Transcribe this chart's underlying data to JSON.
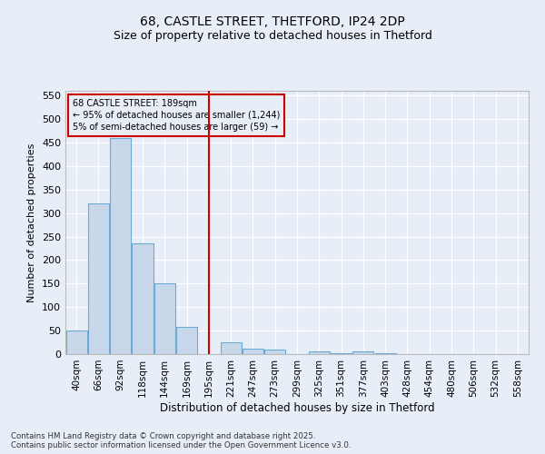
{
  "title1": "68, CASTLE STREET, THETFORD, IP24 2DP",
  "title2": "Size of property relative to detached houses in Thetford",
  "xlabel": "Distribution of detached houses by size in Thetford",
  "ylabel": "Number of detached properties",
  "categories": [
    "40sqm",
    "66sqm",
    "92sqm",
    "118sqm",
    "144sqm",
    "169sqm",
    "195sqm",
    "221sqm",
    "247sqm",
    "273sqm",
    "299sqm",
    "325sqm",
    "351sqm",
    "377sqm",
    "403sqm",
    "428sqm",
    "454sqm",
    "480sqm",
    "506sqm",
    "532sqm",
    "558sqm"
  ],
  "values": [
    50,
    320,
    460,
    235,
    150,
    57,
    0,
    25,
    12,
    9,
    0,
    5,
    1,
    5,
    1,
    0,
    0,
    0,
    0,
    0,
    0
  ],
  "bar_color": "#c8d8ea",
  "bar_edge_color": "#6aaad4",
  "vline_index": 6,
  "vline_color": "#cc0000",
  "annotation_line1": "68 CASTLE STREET: 189sqm",
  "annotation_line2": "← 95% of detached houses are smaller (1,244)",
  "annotation_line3": "5% of semi-detached houses are larger (59) →",
  "annotation_box_color": "#cc0000",
  "ylim": [
    0,
    560
  ],
  "yticks": [
    0,
    50,
    100,
    150,
    200,
    250,
    300,
    350,
    400,
    450,
    500,
    550
  ],
  "background_color": "#e8eef8",
  "grid_color": "#ffffff",
  "footer1": "Contains HM Land Registry data © Crown copyright and database right 2025.",
  "footer2": "Contains public sector information licensed under the Open Government Licence v3.0.",
  "title1_fontsize": 10,
  "title2_fontsize": 9,
  "annotation_fontsize": 7,
  "xlabel_fontsize": 8.5,
  "ylabel_fontsize": 8
}
